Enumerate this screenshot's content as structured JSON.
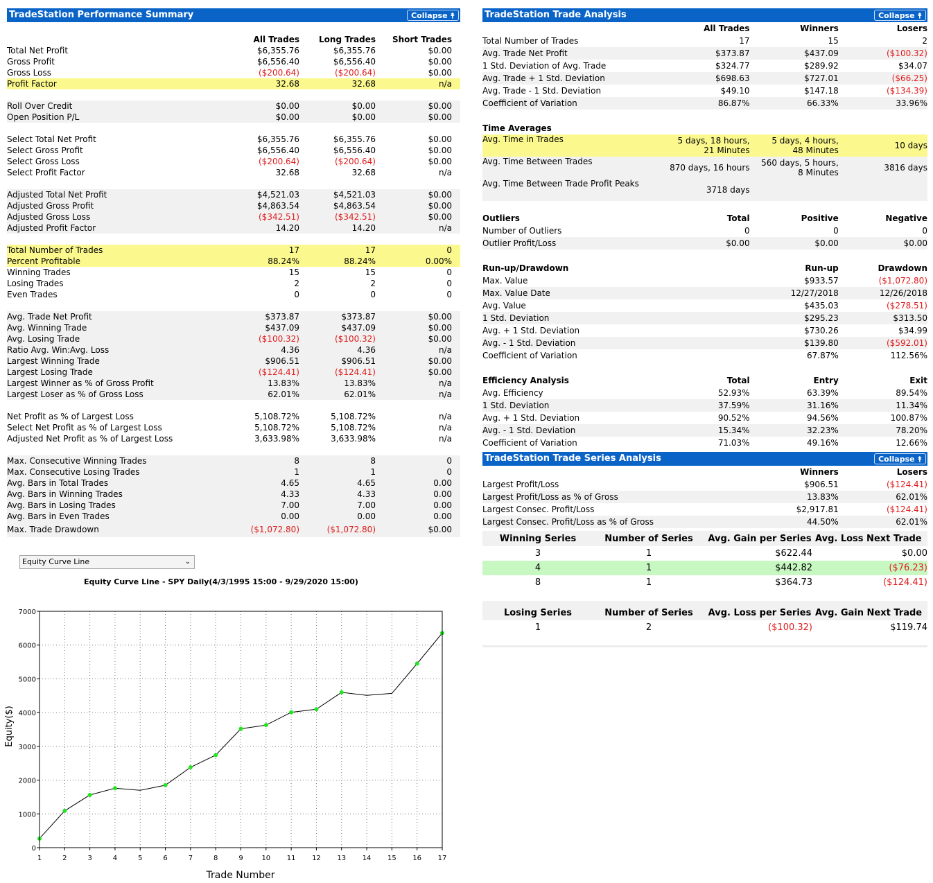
{
  "summary": {
    "title": "TradeStation Performance Summary",
    "collapse_label": "Collapse ⯭",
    "columns": [
      "All Trades",
      "Long Trades",
      "Short Trades"
    ],
    "groups": [
      {
        "bg": "",
        "rows": [
          {
            "label": "Total Net Profit",
            "v": [
              "$6,355.76",
              "$6,355.76",
              "$0.00"
            ]
          },
          {
            "label": "Gross Profit",
            "v": [
              "$6,556.40",
              "$6,556.40",
              "$0.00"
            ]
          },
          {
            "label": "Gross Loss",
            "v": [
              "($200.64)",
              "($200.64)",
              "$0.00"
            ]
          },
          {
            "label": "Profit Factor",
            "v": [
              "32.68",
              "32.68",
              "n/a"
            ],
            "hl": true
          }
        ]
      },
      {
        "bg": "gr",
        "rows": [
          {
            "label": "Roll Over Credit",
            "v": [
              "$0.00",
              "$0.00",
              "$0.00"
            ]
          },
          {
            "label": "Open Position P/L",
            "v": [
              "$0.00",
              "$0.00",
              "$0.00"
            ]
          }
        ]
      },
      {
        "bg": "",
        "rows": [
          {
            "label": "Select Total Net Profit",
            "v": [
              "$6,355.76",
              "$6,355.76",
              "$0.00"
            ]
          },
          {
            "label": "Select Gross Profit",
            "v": [
              "$6,556.40",
              "$6,556.40",
              "$0.00"
            ]
          },
          {
            "label": "Select Gross Loss",
            "v": [
              "($200.64)",
              "($200.64)",
              "$0.00"
            ]
          },
          {
            "label": "Select Profit Factor",
            "v": [
              "32.68",
              "32.68",
              "n/a"
            ]
          }
        ]
      },
      {
        "bg": "gr",
        "rows": [
          {
            "label": "Adjusted Total Net Profit",
            "v": [
              "$4,521.03",
              "$4,521.03",
              "$0.00"
            ]
          },
          {
            "label": "Adjusted Gross Profit",
            "v": [
              "$4,863.54",
              "$4,863.54",
              "$0.00"
            ]
          },
          {
            "label": "Adjusted Gross Loss",
            "v": [
              "($342.51)",
              "($342.51)",
              "$0.00"
            ]
          },
          {
            "label": "Adjusted Profit Factor",
            "v": [
              "14.20",
              "14.20",
              "n/a"
            ]
          }
        ]
      },
      {
        "bg": "",
        "rows": [
          {
            "label": "Total Number of Trades",
            "v": [
              "17",
              "17",
              "0"
            ],
            "hl": true
          },
          {
            "label": "Percent Profitable",
            "v": [
              "88.24%",
              "88.24%",
              "0.00%"
            ],
            "hl": true
          },
          {
            "label": "Winning Trades",
            "v": [
              "15",
              "15",
              "0"
            ]
          },
          {
            "label": "Losing Trades",
            "v": [
              "2",
              "2",
              "0"
            ]
          },
          {
            "label": "Even Trades",
            "v": [
              "0",
              "0",
              "0"
            ]
          }
        ]
      },
      {
        "bg": "gr",
        "rows": [
          {
            "label": "Avg. Trade Net Profit",
            "v": [
              "$373.87",
              "$373.87",
              "$0.00"
            ]
          },
          {
            "label": "Avg. Winning Trade",
            "v": [
              "$437.09",
              "$437.09",
              "$0.00"
            ]
          },
          {
            "label": "Avg. Losing Trade",
            "v": [
              "($100.32)",
              "($100.32)",
              "$0.00"
            ]
          },
          {
            "label": "Ratio Avg. Win:Avg. Loss",
            "v": [
              "4.36",
              "4.36",
              "n/a"
            ]
          },
          {
            "label": "Largest Winning Trade",
            "v": [
              "$906.51",
              "$906.51",
              "$0.00"
            ]
          },
          {
            "label": "Largest Losing Trade",
            "v": [
              "($124.41)",
              "($124.41)",
              "$0.00"
            ]
          },
          {
            "label": "Largest Winner as % of Gross Profit",
            "v": [
              "13.83%",
              "13.83%",
              "n/a"
            ]
          },
          {
            "label": "Largest Loser as % of Gross Loss",
            "v": [
              "62.01%",
              "62.01%",
              "n/a"
            ]
          }
        ]
      },
      {
        "bg": "",
        "rows": [
          {
            "label": "Net Profit as % of Largest Loss",
            "v": [
              "5,108.72%",
              "5,108.72%",
              "n/a"
            ]
          },
          {
            "label": "Select Net Profit as % of Largest Loss",
            "v": [
              "5,108.72%",
              "5,108.72%",
              "n/a"
            ]
          },
          {
            "label": "Adjusted Net Profit as % of Largest Loss",
            "v": [
              "3,633.98%",
              "3,633.98%",
              "n/a"
            ]
          }
        ]
      },
      {
        "bg": "gr",
        "rows": [
          {
            "label": "Max. Consecutive Winning Trades",
            "v": [
              "8",
              "8",
              "0"
            ]
          },
          {
            "label": "Max. Consecutive Losing Trades",
            "v": [
              "1",
              "1",
              "0"
            ]
          },
          {
            "label": "Avg. Bars in Total Trades",
            "v": [
              "4.65",
              "4.65",
              "0.00"
            ]
          },
          {
            "label": "Avg. Bars in Winning Trades",
            "v": [
              "4.33",
              "4.33",
              "0.00"
            ]
          },
          {
            "label": "Avg. Bars in Losing Trades",
            "v": [
              "7.00",
              "7.00",
              "0.00"
            ]
          },
          {
            "label": "Avg. Bars in Even Trades",
            "v": [
              "0.00",
              "0.00",
              "0.00"
            ]
          },
          {
            "label": "Max. Trade Drawdown",
            "v": [
              "($1,072.80)",
              "($1,072.80)",
              "$0.00"
            ],
            "tall": true
          }
        ]
      }
    ]
  },
  "analysis": {
    "title": "TradeStation Trade Analysis",
    "collapse_label": "Collapse ⯭",
    "columns": [
      "All Trades",
      "Winners",
      "Losers"
    ],
    "rows": [
      {
        "label": "Total Number of Trades",
        "v": [
          "17",
          "15",
          "2"
        ]
      },
      {
        "label": "Avg. Trade Net Profit",
        "v": [
          "$373.87",
          "$437.09",
          "($100.32)"
        ]
      },
      {
        "label": "1 Std. Deviation of Avg. Trade",
        "v": [
          "$324.77",
          "$289.92",
          "$34.07"
        ]
      },
      {
        "label": "Avg. Trade + 1 Std. Deviation",
        "v": [
          "$698.63",
          "$727.01",
          "($66.25)"
        ]
      },
      {
        "label": "Avg. Trade - 1 Std. Deviation",
        "v": [
          "$49.10",
          "$147.18",
          "($134.39)"
        ]
      },
      {
        "label": "Coefficient of Variation",
        "v": [
          "86.87%",
          "66.33%",
          "33.96%"
        ]
      }
    ],
    "time_averages": {
      "heading": "Time Averages",
      "rows": [
        {
          "label": "Avg. Time in Trades",
          "v": [
            "5 days, 18 hours,",
            "21 Minutes"
          ],
          "w": [
            "5 days, 4 hours,",
            "48 Minutes"
          ],
          "l": "10 days",
          "hl": true
        },
        {
          "label": "Avg. Time Between Trades",
          "v": [
            "870 days, 16 hours"
          ],
          "w": [
            "560 days, 5 hours,",
            "8 Minutes"
          ],
          "l": "3816 days"
        },
        {
          "label": "Avg. Time Between Trade Profit Peaks",
          "v": [
            "3718 days"
          ],
          "w": [],
          "l": ""
        }
      ]
    },
    "outliers": {
      "heading": "Outliers",
      "columns": [
        "Total",
        "Positive",
        "Negative"
      ],
      "rows": [
        {
          "label": "Number of Outliers",
          "v": [
            "0",
            "0",
            "0"
          ]
        },
        {
          "label": "Outlier Profit/Loss",
          "v": [
            "$0.00",
            "$0.00",
            "$0.00"
          ]
        }
      ]
    },
    "runup": {
      "heading": "Run-up/Drawdown",
      "columns": [
        "",
        "Run-up",
        "Drawdown"
      ],
      "rows": [
        {
          "label": "Max. Value",
          "v": [
            "",
            "$933.57",
            "($1,072.80)"
          ]
        },
        {
          "label": "Max. Value Date",
          "v": [
            "",
            "12/27/2018",
            "12/26/2018"
          ]
        },
        {
          "label": "Avg. Value",
          "v": [
            "",
            "$435.03",
            "($278.51)"
          ]
        },
        {
          "label": "1 Std. Deviation",
          "v": [
            "",
            "$295.23",
            "$313.50"
          ]
        },
        {
          "label": "Avg. + 1 Std. Deviation",
          "v": [
            "",
            "$730.26",
            "$34.99"
          ]
        },
        {
          "label": "Avg. - 1 Std. Deviation",
          "v": [
            "",
            "$139.80",
            "($592.01)"
          ]
        },
        {
          "label": "Coefficient of Variation",
          "v": [
            "",
            "67.87%",
            "112.56%"
          ]
        }
      ]
    },
    "efficiency": {
      "heading": "Efficiency Analysis",
      "columns": [
        "Total",
        "Entry",
        "Exit"
      ],
      "rows": [
        {
          "label": "Avg. Efficiency",
          "v": [
            "52.93%",
            "63.39%",
            "89.54%"
          ]
        },
        {
          "label": "1 Std. Deviation",
          "v": [
            "37.59%",
            "31.16%",
            "11.34%"
          ]
        },
        {
          "label": "Avg. + 1 Std. Deviation",
          "v": [
            "90.52%",
            "94.56%",
            "100.87%"
          ]
        },
        {
          "label": "Avg. - 1 Std. Deviation",
          "v": [
            "15.34%",
            "32.23%",
            "78.20%"
          ]
        },
        {
          "label": "Coefficient of Variation",
          "v": [
            "71.03%",
            "49.16%",
            "12.66%"
          ]
        }
      ]
    }
  },
  "series": {
    "title": "TradeStation Trade Series Analysis",
    "collapse_label": "Collapse ⯭",
    "columns": [
      "Winners",
      "Losers"
    ],
    "rows": [
      {
        "label": "Largest Profit/Loss",
        "v": [
          "$906.51",
          "($124.41)"
        ]
      },
      {
        "label": "Largest Profit/Loss as % of Gross",
        "v": [
          "13.83%",
          "62.01%"
        ]
      },
      {
        "label": "Largest Consec. Profit/Loss",
        "v": [
          "$2,917.81",
          "($124.41)"
        ]
      },
      {
        "label": "Largest Consec. Profit/Loss as % of Gross",
        "v": [
          "44.50%",
          "62.01%"
        ]
      }
    ],
    "winning": {
      "columns": [
        "Winning Series",
        "Number of Series",
        "Avg. Gain per Series",
        "Avg. Loss Next Trade"
      ],
      "rows": [
        {
          "v": [
            "3",
            "1",
            "$622.44",
            "$0.00"
          ]
        },
        {
          "v": [
            "4",
            "1",
            "$442.82",
            "($76.23)"
          ],
          "hl": true
        },
        {
          "v": [
            "8",
            "1",
            "$364.73",
            "($124.41)"
          ]
        }
      ]
    },
    "losing": {
      "columns": [
        "Losing Series",
        "Number of Series",
        "Avg. Loss per Series",
        "Avg. Gain Next Trade"
      ],
      "rows": [
        {
          "v": [
            "1",
            "2",
            "($100.32)",
            "$119.74"
          ]
        }
      ]
    }
  },
  "chart_selector": {
    "value": "Equity Curve Line"
  },
  "chart_data": {
    "type": "line",
    "title": "Equity Curve Line - SPY Daily(4/3/1995 15:00 - 9/29/2020 15:00)",
    "xlabel": "Trade Number",
    "ylabel": "Equity($)",
    "x": [
      1,
      2,
      3,
      4,
      5,
      6,
      7,
      8,
      9,
      10,
      11,
      12,
      13,
      14,
      15,
      16,
      17
    ],
    "y": [
      270,
      1090,
      1560,
      1760,
      1700,
      1850,
      2380,
      2740,
      3520,
      3630,
      4010,
      4100,
      4600,
      4510,
      4570,
      5450,
      6356
    ],
    "markers": [
      true,
      true,
      true,
      true,
      false,
      true,
      true,
      true,
      true,
      true,
      true,
      true,
      true,
      false,
      false,
      true,
      true
    ],
    "xlim": [
      1,
      17
    ],
    "ylim": [
      0,
      7000
    ],
    "yticks": [
      0,
      1000,
      2000,
      3000,
      4000,
      5000,
      6000,
      7000
    ],
    "grid": true,
    "line_color": "#000000",
    "marker_color": "#22e622"
  }
}
